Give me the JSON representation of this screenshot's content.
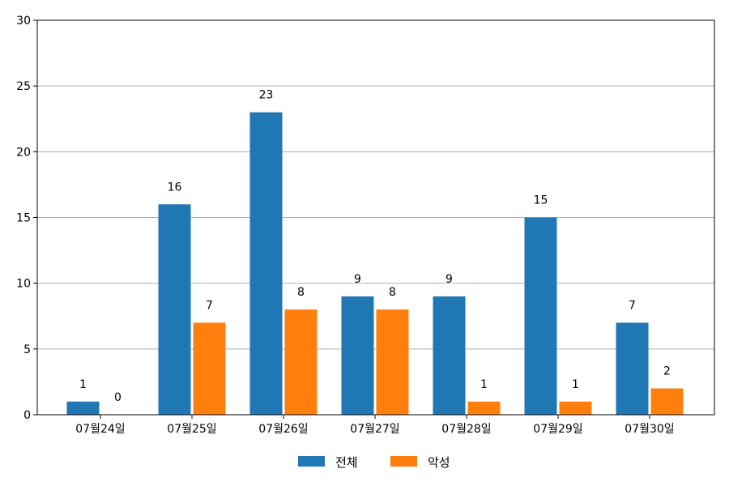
{
  "chart_data": {
    "type": "bar",
    "categories": [
      "07월24일",
      "07월25일",
      "07월26일",
      "07월27일",
      "07월28일",
      "07월29일",
      "07월30일"
    ],
    "series": [
      {
        "name": "전체",
        "color": "#1f77b4",
        "values": [
          1,
          16,
          23,
          9,
          9,
          15,
          7
        ]
      },
      {
        "name": "악성",
        "color": "#ff7f0e",
        "values": [
          0,
          7,
          8,
          8,
          1,
          1,
          2
        ]
      }
    ],
    "ylim": [
      0,
      30
    ],
    "yticks": [
      0,
      5,
      10,
      15,
      20,
      25,
      30
    ],
    "grid": "horizontal",
    "legend": "bottom-center"
  }
}
